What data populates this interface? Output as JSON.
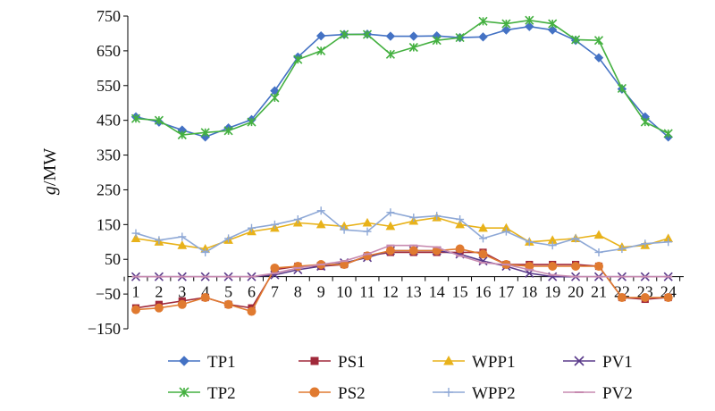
{
  "chart_data": {
    "type": "line",
    "title": "",
    "xlabel": "",
    "ylabel": "g/MW",
    "ylabel_italic": "g",
    "ylabel_unit": "/MW",
    "ylim": [
      -150,
      750
    ],
    "yticks": [
      -150,
      -50,
      50,
      150,
      250,
      350,
      450,
      550,
      650,
      750
    ],
    "x": [
      1,
      2,
      3,
      4,
      5,
      6,
      7,
      8,
      9,
      10,
      11,
      12,
      13,
      14,
      15,
      16,
      17,
      18,
      19,
      20,
      21,
      22,
      23,
      24
    ],
    "grid": false,
    "legend_position": "bottom",
    "series": [
      {
        "name": "TP1",
        "color": "#4472C4",
        "marker": "diamond",
        "values": [
          460,
          445,
          422,
          402,
          428,
          452,
          535,
          632,
          693,
          697,
          698,
          692,
          692,
          693,
          688,
          690,
          710,
          720,
          710,
          680,
          630,
          540,
          460,
          402
        ]
      },
      {
        "name": "PS1",
        "color": "#A0293A",
        "marker": "square",
        "values": [
          -90,
          -80,
          -70,
          -60,
          -80,
          -90,
          20,
          30,
          30,
          35,
          60,
          70,
          70,
          70,
          70,
          70,
          35,
          35,
          35,
          35,
          30,
          -60,
          -65,
          -60
        ]
      },
      {
        "name": "WPP1",
        "color": "#E8B21A",
        "marker": "triangle",
        "values": [
          110,
          100,
          90,
          80,
          105,
          130,
          140,
          155,
          150,
          145,
          155,
          145,
          160,
          170,
          150,
          140,
          140,
          100,
          105,
          110,
          120,
          85,
          90,
          110
        ]
      },
      {
        "name": "PV1",
        "color": "#5A3A8A",
        "marker": "x",
        "values": [
          0,
          0,
          0,
          0,
          0,
          0,
          5,
          20,
          30,
          40,
          55,
          75,
          75,
          75,
          65,
          45,
          30,
          10,
          0,
          0,
          0,
          0,
          0,
          0
        ]
      },
      {
        "name": "TP2",
        "color": "#44B040",
        "marker": "asterisk",
        "values": [
          455,
          450,
          408,
          415,
          420,
          445,
          515,
          625,
          650,
          697,
          697,
          640,
          660,
          680,
          688,
          735,
          728,
          738,
          728,
          682,
          680,
          542,
          445,
          412
        ]
      },
      {
        "name": "PS2",
        "color": "#E07A30",
        "marker": "circle",
        "values": [
          -95,
          -90,
          -80,
          -60,
          -80,
          -100,
          25,
          30,
          35,
          35,
          60,
          75,
          75,
          75,
          80,
          65,
          35,
          30,
          30,
          30,
          30,
          -60,
          -60,
          -60
        ]
      },
      {
        "name": "WPP2",
        "color": "#8EA8D6",
        "marker": "plus",
        "values": [
          125,
          105,
          115,
          70,
          110,
          140,
          150,
          165,
          190,
          135,
          130,
          185,
          170,
          175,
          165,
          110,
          130,
          100,
          90,
          110,
          70,
          80,
          95,
          100
        ]
      },
      {
        "name": "PV2",
        "color": "#C78AB0",
        "marker": "dash",
        "values": [
          0,
          0,
          0,
          0,
          0,
          0,
          10,
          25,
          35,
          45,
          65,
          90,
          90,
          85,
          60,
          40,
          35,
          20,
          5,
          0,
          0,
          0,
          0,
          0
        ]
      }
    ]
  }
}
